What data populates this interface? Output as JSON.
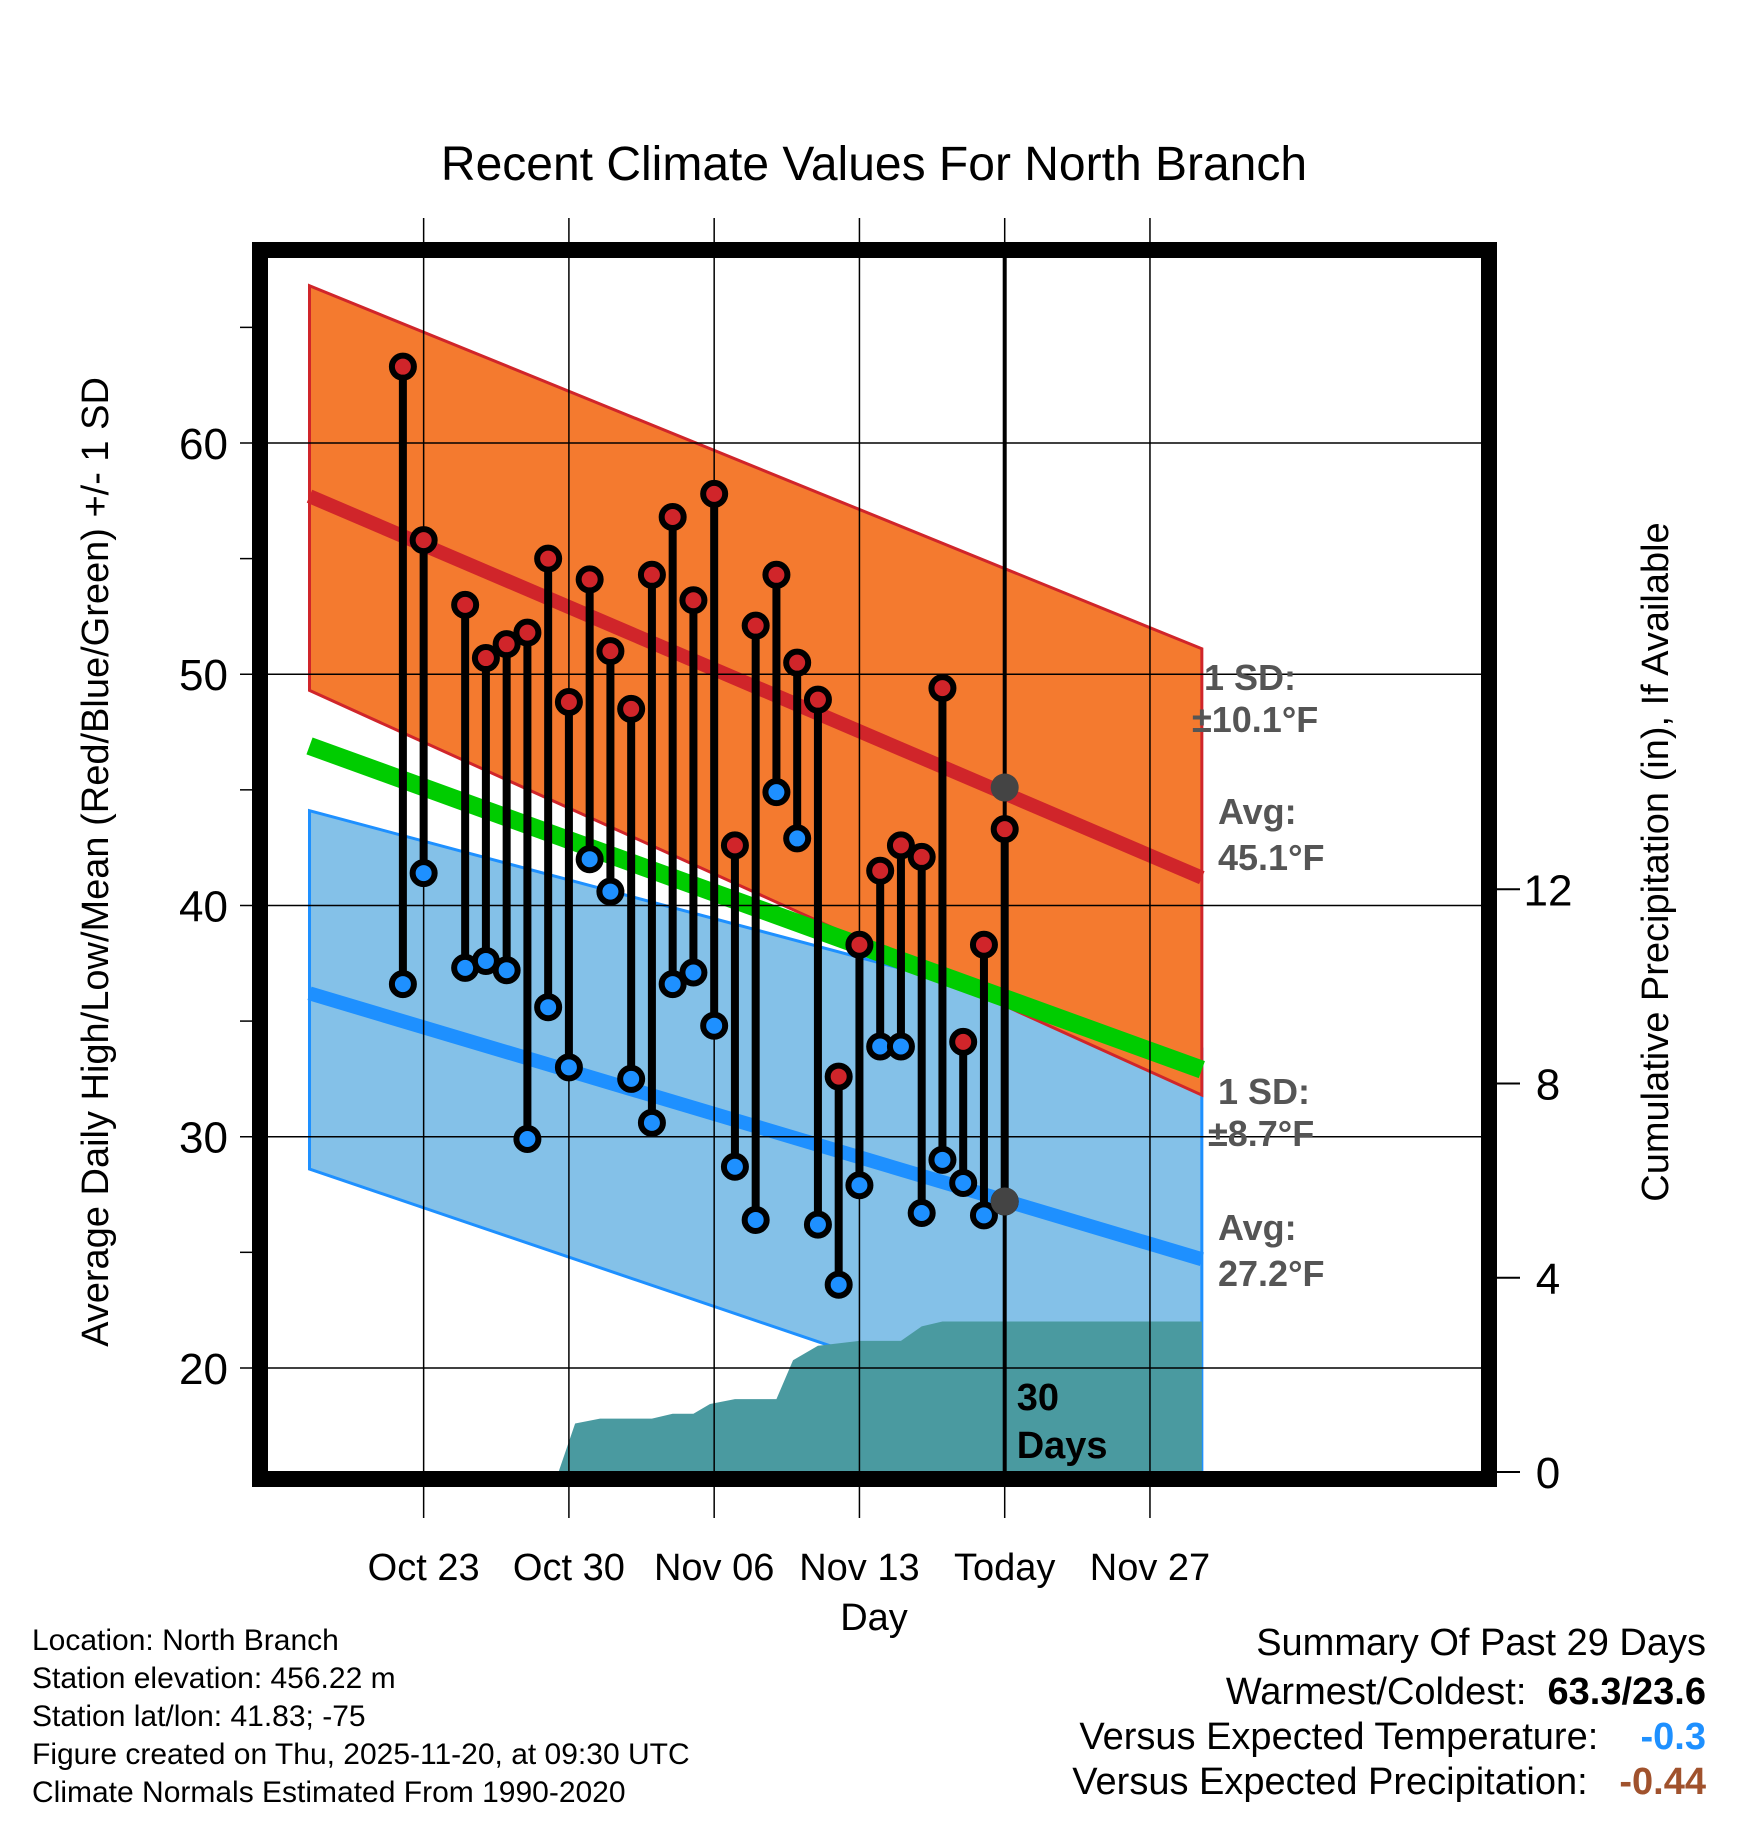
{
  "chart_data": {
    "type": "line",
    "title": "Recent Climate Values For North Branch",
    "xlabel": "Day",
    "ylabel": "Average Daily High/Low/Mean (Red/Blue/Green) +/- 1 SD",
    "ylabel_right": "Cumulative Precipitation (in), If Available",
    "ylim": [
      15.5,
      68
    ],
    "ylim_right": [
      0,
      25
    ],
    "xlim": [
      -4.5,
      54
    ],
    "y_ticks": [
      20,
      30,
      40,
      50,
      60
    ],
    "y_ticks_right": [
      0,
      4,
      8,
      12
    ],
    "x_ticks": [
      {
        "day": 3,
        "label": "Oct 23"
      },
      {
        "day": 10,
        "label": "Oct 30"
      },
      {
        "day": 17,
        "label": "Nov 06"
      },
      {
        "day": 24,
        "label": "Nov 13"
      },
      {
        "day": 31,
        "label": "Today"
      },
      {
        "day": 38,
        "label": "Nov 27"
      }
    ],
    "today_day": 31,
    "today_label": "30\nDays",
    "normals": {
      "days": [
        -2.5,
        40.5
      ],
      "high_avg": [
        57.7,
        41.2
      ],
      "high_upper": [
        66.8,
        51.1
      ],
      "high_lower": [
        49.3,
        31.8
      ],
      "low_avg": [
        36.2,
        24.7
      ],
      "low_upper": [
        44.1,
        33.8
      ],
      "low_lower": [
        28.6,
        15.5
      ],
      "mean_avg": [
        46.9,
        32.9
      ]
    },
    "highs": [
      {
        "day": 2,
        "high": 63.3,
        "low": 36.6
      },
      {
        "day": 3,
        "high": 55.8,
        "low": 41.4
      },
      {
        "day": 5,
        "high": 53.0,
        "low": 37.3
      },
      {
        "day": 6,
        "high": 50.7,
        "low": 37.6
      },
      {
        "day": 7,
        "high": 51.3,
        "low": 37.2
      },
      {
        "day": 8,
        "high": 51.8,
        "low": 29.9
      },
      {
        "day": 9,
        "high": 55.0,
        "low": 35.6
      },
      {
        "day": 10,
        "high": 48.8,
        "low": 33.0
      },
      {
        "day": 11,
        "high": 54.1,
        "low": 42.0
      },
      {
        "day": 12,
        "high": 51.0,
        "low": 40.6
      },
      {
        "day": 13,
        "high": 48.5,
        "low": 32.5
      },
      {
        "day": 14,
        "high": 54.3,
        "low": 30.6
      },
      {
        "day": 15,
        "high": 56.8,
        "low": 36.6
      },
      {
        "day": 16,
        "high": 53.2,
        "low": 37.1
      },
      {
        "day": 17,
        "high": 57.8,
        "low": 34.8
      },
      {
        "day": 18,
        "high": 42.6,
        "low": 28.7
      },
      {
        "day": 19,
        "high": 52.1,
        "low": 26.4
      },
      {
        "day": 20,
        "high": 54.3,
        "low": 44.9
      },
      {
        "day": 21,
        "high": 50.5,
        "low": 42.9
      },
      {
        "day": 22,
        "high": 48.9,
        "low": 26.2
      },
      {
        "day": 23,
        "high": 32.6,
        "low": 23.6
      },
      {
        "day": 24,
        "high": 38.3,
        "low": 27.9
      },
      {
        "day": 25,
        "high": 41.5,
        "low": 33.9
      },
      {
        "day": 26,
        "high": 42.6,
        "low": 33.9
      },
      {
        "day": 27,
        "high": 42.1,
        "low": 26.7
      },
      {
        "day": 28,
        "high": 49.4,
        "low": 29.0
      },
      {
        "day": 29,
        "high": 34.1,
        "low": 28.0
      },
      {
        "day": 30,
        "high": 38.3,
        "low": 26.6
      },
      {
        "day": 31,
        "high": 43.3,
        "low": 27.2
      }
    ],
    "precip": {
      "days": [
        9.5,
        10.3,
        11.5,
        14,
        15,
        16,
        16.8,
        18,
        19,
        20,
        20.8,
        22,
        24,
        26,
        27,
        28,
        29,
        40.5
      ],
      "values": [
        0,
        1.0,
        1.1,
        1.1,
        1.2,
        1.2,
        1.4,
        1.5,
        1.5,
        1.5,
        2.3,
        2.6,
        2.7,
        2.7,
        3.0,
        3.1,
        3.1,
        3.1
      ]
    },
    "annotations": [
      {
        "text": "1 SD:",
        "series": "high"
      },
      {
        "text": "±10.1°F",
        "series": "high"
      },
      {
        "text": "Avg:",
        "series": "high"
      },
      {
        "text": "45.1°F",
        "series": "high"
      },
      {
        "text": "1 SD:",
        "series": "low"
      },
      {
        "text": "±8.7°F",
        "series": "low"
      },
      {
        "text": "Avg:",
        "series": "low"
      },
      {
        "text": "27.2°F",
        "series": "low"
      }
    ],
    "today_high_avg": 45.1,
    "today_low_avg": 27.2
  },
  "colors": {
    "high_band": "#f47a2f",
    "high_line": "#d0252a",
    "low_band": "#84c1e8",
    "low_line": "#1e90ff",
    "mean_line": "#00cc00",
    "precip": "#4a9aa0",
    "high_marker": "#d0252a",
    "low_marker": "#1e90ff",
    "annotation": "#555555"
  },
  "info": {
    "location": "Location: North Branch",
    "elevation": "Station elevation: 456.22 m",
    "latlon": "Station lat/lon: 41.83; -75",
    "created": "Figure created on Thu, 2025-11-20, at 09:30 UTC",
    "normals": "Climate Normals Estimated From 1990-2020"
  },
  "summary": {
    "heading": "Summary Of Past 29 Days",
    "warmest_label": "Warmest/Coldest:",
    "warmest_value": "63.3/23.6",
    "temp_label": "Versus Expected Temperature:",
    "temp_value": "-0.3",
    "temp_color": "#1e90ff",
    "precip_label": "Versus Expected Precipitation:",
    "precip_value": "-0.44",
    "precip_color": "#a0522d"
  }
}
